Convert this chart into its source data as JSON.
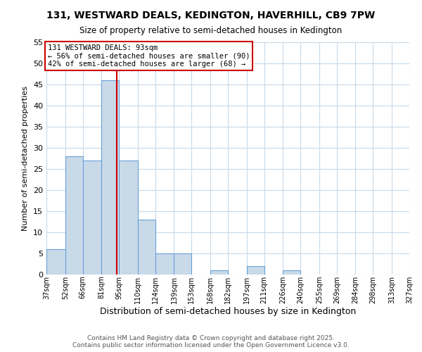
{
  "title": "131, WESTWARD DEALS, KEDINGTON, HAVERHILL, CB9 7PW",
  "subtitle": "Size of property relative to semi-detached houses in Kedington",
  "xlabel": "Distribution of semi-detached houses by size in Kedington",
  "ylabel": "Number of semi-detached properties",
  "bin_labels": [
    "37sqm",
    "52sqm",
    "66sqm",
    "81sqm",
    "95sqm",
    "110sqm",
    "124sqm",
    "139sqm",
    "153sqm",
    "168sqm",
    "182sqm",
    "197sqm",
    "211sqm",
    "226sqm",
    "240sqm",
    "255sqm",
    "269sqm",
    "284sqm",
    "298sqm",
    "313sqm",
    "327sqm"
  ],
  "bin_edges": [
    37,
    52,
    66,
    81,
    95,
    110,
    124,
    139,
    153,
    168,
    182,
    197,
    211,
    226,
    240,
    255,
    269,
    284,
    298,
    313,
    327
  ],
  "bar_counts": [
    6,
    28,
    27,
    46,
    27,
    13,
    5,
    5,
    0,
    1,
    0,
    2,
    0,
    1,
    0,
    0,
    0,
    0,
    0,
    0,
    0
  ],
  "bar_color": "#c8d9e8",
  "bar_edge_color": "#5b9bd5",
  "property_size": 93,
  "vline_color": "#cc0000",
  "annotation_title": "131 WESTWARD DEALS: 93sqm",
  "annotation_line1": "← 56% of semi-detached houses are smaller (90)",
  "annotation_line2": "42% of semi-detached houses are larger (68) →",
  "ylim": [
    0,
    55
  ],
  "yticks": [
    0,
    5,
    10,
    15,
    20,
    25,
    30,
    35,
    40,
    45,
    50,
    55
  ],
  "footer1": "Contains HM Land Registry data © Crown copyright and database right 2025.",
  "footer2": "Contains public sector information licensed under the Open Government Licence v3.0.",
  "background_color": "#ffffff",
  "grid_color": "#c8d9e8",
  "title_fontsize": 10,
  "subtitle_fontsize": 9,
  "ylabel_fontsize": 8,
  "xlabel_fontsize": 9
}
